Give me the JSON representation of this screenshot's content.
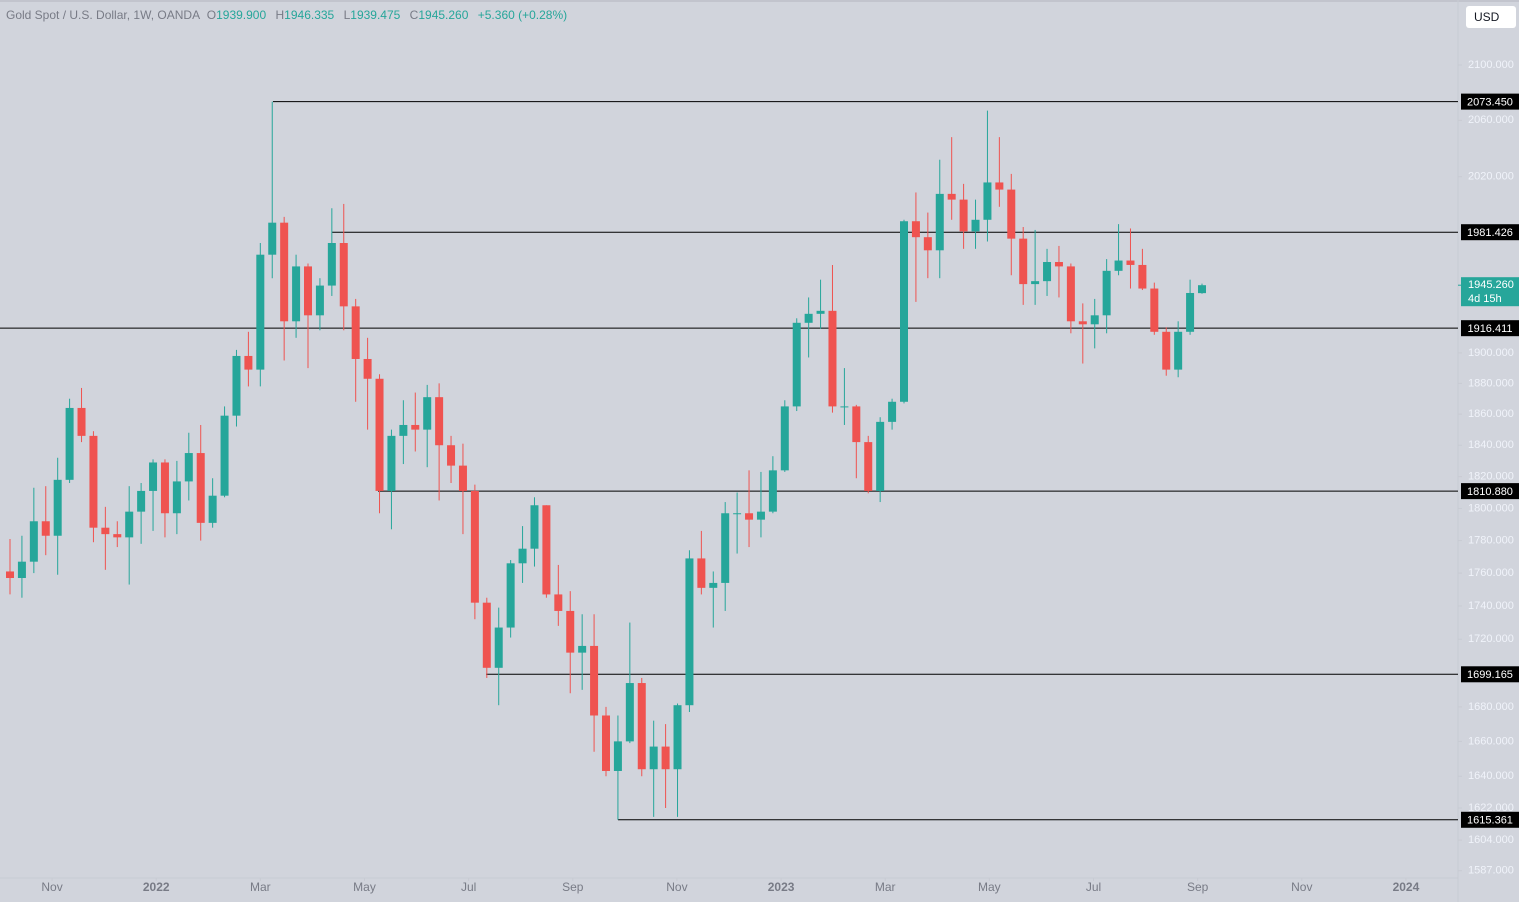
{
  "header": {
    "symbol": "Gold Spot / U.S. Dollar, 1W, OANDA",
    "o_label": "O",
    "o": "1939.900",
    "h_label": "H",
    "h": "1946.335",
    "l_label": "L",
    "l": "1939.475",
    "c_label": "C",
    "c": "1945.260",
    "change": "+5.360 (+0.28%)"
  },
  "currency": "USD",
  "chart_data": {
    "type": "candlestick",
    "log_scale": true,
    "up_color": "#26a69a",
    "down_color": "#ef5350",
    "ylim": [
      1583,
      2148
    ],
    "yticks": [
      {
        "value": 2100,
        "label": "2100.000"
      },
      {
        "value": 2060,
        "label": "2060.000"
      },
      {
        "value": 2020,
        "label": "2020.000"
      },
      {
        "value": 1900,
        "label": "1900.000"
      },
      {
        "value": 1880,
        "label": "1880.000"
      },
      {
        "value": 1860,
        "label": "1860.000"
      },
      {
        "value": 1840,
        "label": "1840.000"
      },
      {
        "value": 1820,
        "label": "1820.000"
      },
      {
        "value": 1800,
        "label": "1800.000"
      },
      {
        "value": 1780,
        "label": "1780.000"
      },
      {
        "value": 1760,
        "label": "1760.000"
      },
      {
        "value": 1740,
        "label": "1740.000"
      },
      {
        "value": 1720,
        "label": "1720.000"
      },
      {
        "value": 1680,
        "label": "1680.000"
      },
      {
        "value": 1660,
        "label": "1660.000"
      },
      {
        "value": 1640,
        "label": "1640.000"
      },
      {
        "value": 1622,
        "label": "1622.000"
      },
      {
        "value": 1604,
        "label": "1604.000"
      },
      {
        "value": 1587,
        "label": "1587.000"
      }
    ],
    "xlim": [
      "2021-10",
      "2024-02"
    ],
    "xticks": [
      {
        "value": "2021-11",
        "label": "Nov"
      },
      {
        "value": "2022-01",
        "label": "2022"
      },
      {
        "value": "2022-03",
        "label": "Mar"
      },
      {
        "value": "2022-05",
        "label": "May"
      },
      {
        "value": "2022-07",
        "label": "Jul"
      },
      {
        "value": "2022-09",
        "label": "Sep"
      },
      {
        "value": "2022-11",
        "label": "Nov"
      },
      {
        "value": "2023-01",
        "label": "2023"
      },
      {
        "value": "2023-03",
        "label": "Mar"
      },
      {
        "value": "2023-05",
        "label": "May"
      },
      {
        "value": "2023-07",
        "label": "Jul"
      },
      {
        "value": "2023-09",
        "label": "Sep"
      },
      {
        "value": "2023-11",
        "label": "Nov"
      },
      {
        "value": "2024-01",
        "label": "2024"
      }
    ],
    "open": [
      1761,
      1757,
      1767,
      1792,
      1783,
      1818,
      1864,
      1846,
      1788,
      1784,
      1782,
      1798,
      1811,
      1829,
      1797,
      1817,
      1835,
      1791,
      1808,
      1859,
      1898,
      1889,
      1966,
      1988,
      1921,
      1958,
      1925,
      1945,
      1974,
      1931,
      1896,
      1883,
      1811,
      1846,
      1853,
      1850,
      1871,
      1840,
      1827,
      1811,
      1742,
      1703,
      1727,
      1766,
      1775,
      1802,
      1747,
      1737,
      1712,
      1716,
      1675,
      1643,
      1660,
      1694,
      1644,
      1657,
      1644,
      1681,
      1769,
      1751,
      1754,
      1797,
      1797,
      1793,
      1798,
      1824,
      1865,
      1920,
      1926,
      1928,
      1865,
      1865,
      1842,
      1811,
      1855,
      1868,
      1989,
      1978,
      1969,
      2008,
      2004,
      1982,
      1990,
      2016,
      2011,
      1977,
      1946,
      1948,
      1961,
      1958,
      1921,
      1919,
      1925,
      1955,
      1962,
      1959,
      1943,
      1914,
      1889,
      1914,
      1939.9
    ],
    "high": [
      1781,
      1783,
      1813,
      1814,
      1832,
      1870,
      1877,
      1849,
      1801,
      1792,
      1814,
      1816,
      1831,
      1831,
      1830,
      1848,
      1853,
      1819,
      1865,
      1902,
      1914,
      1974,
      2073.45,
      1992,
      1966,
      1960,
      1950,
      1998,
      2001,
      1936,
      1910,
      1886,
      1850,
      1869,
      1874,
      1879,
      1880,
      1846,
      1841,
      1815,
      1745,
      1739,
      1768,
      1789,
      1807,
      1802,
      1765,
      1749,
      1735,
      1735,
      1680,
      1675,
      1730,
      1697,
      1672,
      1670,
      1682,
      1774,
      1786,
      1761,
      1804,
      1810,
      1824,
      1823,
      1833,
      1869,
      1923,
      1937,
      1949,
      1959,
      1890,
      1866,
      1846,
      1858,
      1870,
      1990,
      2009,
      1995,
      2032,
      2048,
      2015,
      2004,
      2067,
      2048,
      2022,
      1985,
      1983,
      1970,
      1972,
      1960,
      1933,
      1936,
      1963,
      1987,
      1984,
      1970,
      1947,
      1917,
      1921,
      1949,
      1946.335
    ],
    "low": [
      1747,
      1745,
      1760,
      1771,
      1759,
      1816,
      1842,
      1779,
      1762,
      1776,
      1753,
      1778,
      1786,
      1782,
      1784,
      1805,
      1780,
      1788,
      1807,
      1852,
      1878,
      1878,
      1950,
      1895,
      1910,
      1890,
      1915,
      1938,
      1915,
      1868,
      1850,
      1797,
      1787,
      1828,
      1836,
      1826,
      1805,
      1816,
      1784,
      1732,
      1697,
      1681,
      1721,
      1754,
      1764,
      1745,
      1728,
      1688,
      1690,
      1654,
      1640,
      1615.361,
      1659,
      1640,
      1617,
      1622,
      1617,
      1677,
      1747,
      1727,
      1737,
      1772,
      1776,
      1782,
      1797,
      1823,
      1862,
      1897,
      1916,
      1861,
      1853,
      1819,
      1809.5,
      1804,
      1850,
      1867,
      1934,
      1950,
      1950,
      1990,
      1970,
      1970,
      1975,
      1999,
      1952,
      1932,
      1932,
      1938,
      1937,
      1913,
      1893,
      1903,
      1913,
      1952,
      1943,
      1942,
      1912,
      1885,
      1884,
      1912,
      1939.475
    ],
    "close": [
      1757,
      1767,
      1792,
      1783,
      1818,
      1864,
      1846,
      1788,
      1784,
      1782,
      1798,
      1811,
      1829,
      1797,
      1817,
      1835,
      1791,
      1808,
      1859,
      1898,
      1889,
      1966,
      1988,
      1921,
      1958,
      1925,
      1945,
      1974,
      1931,
      1896,
      1883,
      1811,
      1846,
      1853,
      1850,
      1871,
      1840,
      1827,
      1811,
      1742,
      1703,
      1727,
      1766,
      1775,
      1802,
      1747,
      1737,
      1712,
      1716,
      1675,
      1643,
      1660,
      1694,
      1644,
      1657,
      1644,
      1681,
      1769,
      1751,
      1754,
      1797,
      1797,
      1793,
      1798,
      1824,
      1865,
      1920,
      1926,
      1928,
      1865,
      1865,
      1842,
      1811,
      1855,
      1868,
      1989,
      1978,
      1969,
      2008,
      2004,
      1982,
      1990,
      2016,
      2011,
      1977,
      1946,
      1948,
      1961,
      1958,
      1921,
      1919,
      1925,
      1955,
      1962,
      1959,
      1943,
      1914,
      1889,
      1914,
      1940,
      1945.26
    ],
    "levels": [
      {
        "value": 2073.45,
        "label": "2073.450"
      },
      {
        "value": 1981.426,
        "label": "1981.426"
      },
      {
        "value": 1916.411,
        "label": "1916.411"
      },
      {
        "value": 1810.88,
        "label": "1810.880"
      },
      {
        "value": 1699.165,
        "label": "1699.165"
      },
      {
        "value": 1615.361,
        "label": "1615.361"
      }
    ],
    "last_price": {
      "value": 1945.26,
      "label": "1945.260",
      "countdown": "4d 15h"
    }
  }
}
